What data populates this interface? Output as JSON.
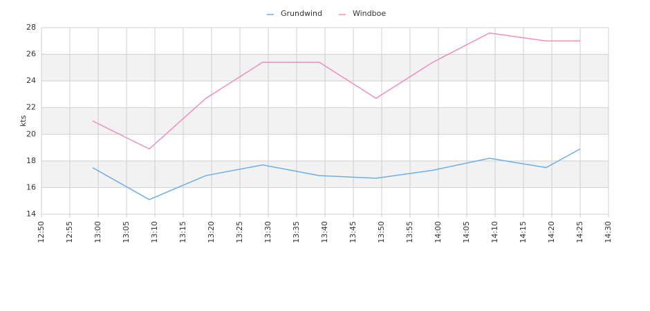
{
  "chart_data": {
    "type": "line",
    "y_label": "kts",
    "x": [
      "12:59",
      "13:09",
      "13:19",
      "13:29",
      "13:39",
      "13:49",
      "13:59",
      "14:09",
      "14:19",
      "14:25"
    ],
    "series": [
      {
        "name": "Grundwind",
        "color": "#6aaee8",
        "values": [
          17.5,
          15.1,
          16.9,
          17.7,
          16.9,
          16.7,
          17.3,
          18.2,
          17.5,
          18.9
        ]
      },
      {
        "name": "Windboe",
        "color": "#f08cbf",
        "values": [
          21.0,
          18.9,
          22.7,
          25.4,
          25.4,
          22.7,
          25.4,
          27.6,
          27.0,
          27.0
        ]
      }
    ],
    "xlim": [
      "12:50",
      "14:30"
    ],
    "xticks": [
      "12:50",
      "12:55",
      "13:00",
      "13:05",
      "13:10",
      "13:15",
      "13:20",
      "13:25",
      "13:30",
      "13:35",
      "13:40",
      "13:45",
      "13:50",
      "13:55",
      "14:00",
      "14:05",
      "14:10",
      "14:15",
      "14:20",
      "14:25",
      "14:30"
    ],
    "ylim": [
      14,
      28
    ],
    "yticks": [
      14,
      16,
      18,
      20,
      22,
      24,
      26,
      28
    ],
    "grid": true,
    "band_color": "#f2f2f2",
    "legend": "top"
  }
}
